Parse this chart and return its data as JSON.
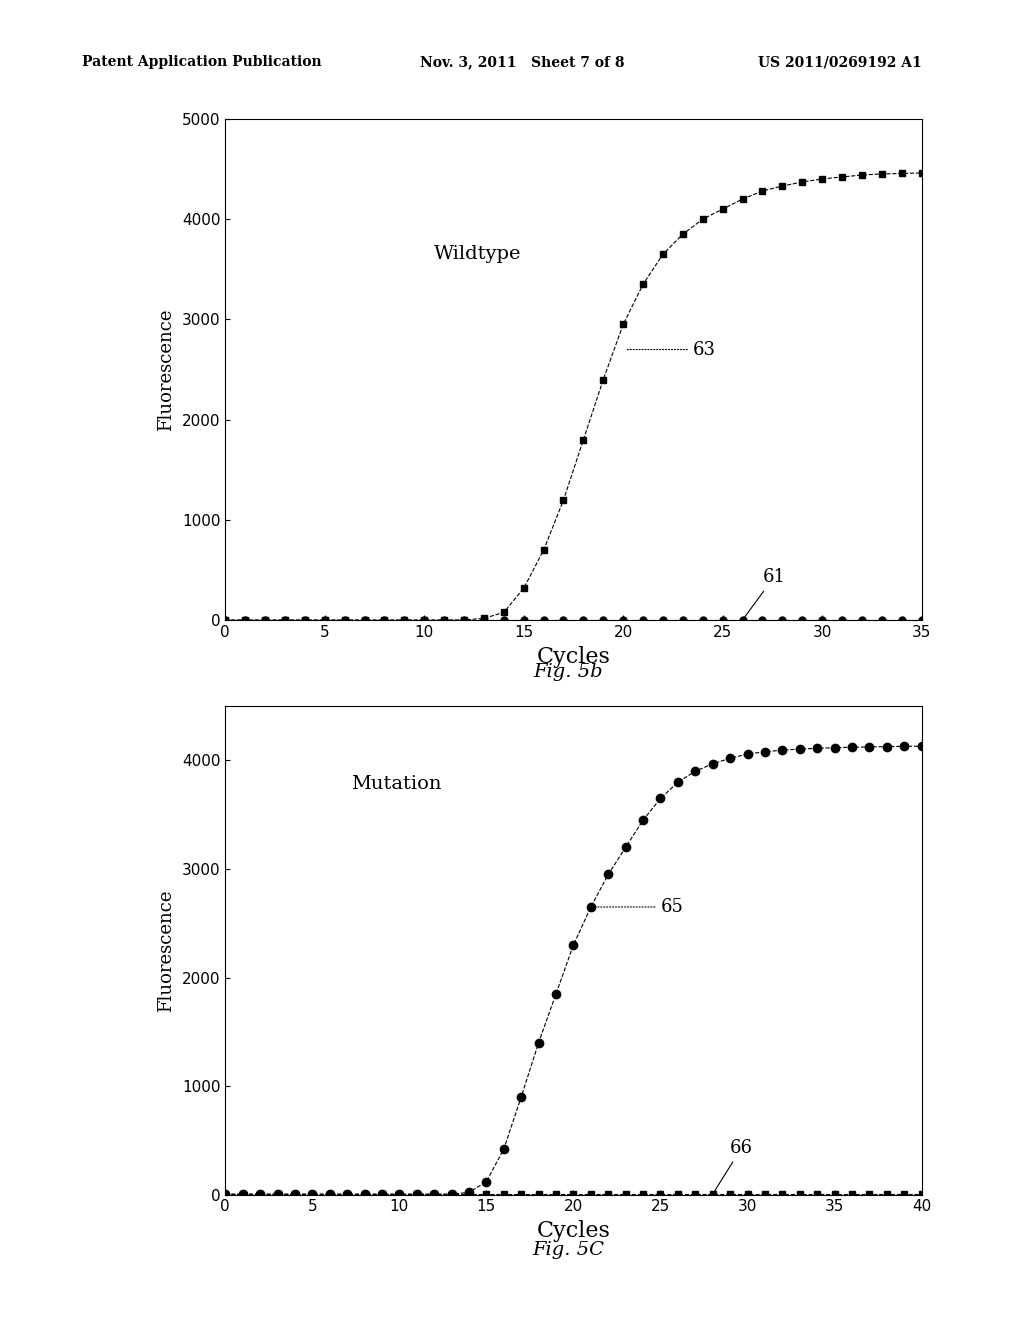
{
  "header_left": "Patent Application Publication",
  "header_mid": "Nov. 3, 2011   Sheet 7 of 8",
  "header_right": "US 2011/0269192 A1",
  "fig1": {
    "title_text": "Wildtype",
    "xlabel": "Cycles",
    "ylabel": "Fluorescence",
    "xlim": [
      0,
      35
    ],
    "ylim": [
      0,
      5000
    ],
    "xticks": [
      0,
      5,
      10,
      15,
      20,
      25,
      30,
      35
    ],
    "yticks": [
      0,
      1000,
      2000,
      3000,
      4000,
      5000
    ],
    "label63": "63",
    "label61": "61",
    "figcaption": "Fig. 5b",
    "curve63_x": [
      0,
      1,
      2,
      3,
      4,
      5,
      6,
      7,
      8,
      9,
      10,
      11,
      12,
      13,
      14,
      15,
      16,
      17,
      18,
      19,
      20,
      21,
      22,
      23,
      24,
      25,
      26,
      27,
      28,
      29,
      30,
      31,
      32,
      33,
      34,
      35
    ],
    "curve63_y": [
      5,
      5,
      5,
      5,
      5,
      5,
      5,
      5,
      5,
      5,
      5,
      5,
      5,
      20,
      80,
      320,
      700,
      1200,
      1800,
      2400,
      2950,
      3350,
      3650,
      3850,
      4000,
      4100,
      4200,
      4280,
      4330,
      4370,
      4400,
      4420,
      4440,
      4450,
      4455,
      4460
    ],
    "curve61_x": [
      0,
      1,
      2,
      3,
      4,
      5,
      6,
      7,
      8,
      9,
      10,
      11,
      12,
      13,
      14,
      15,
      16,
      17,
      18,
      19,
      20,
      21,
      22,
      23,
      24,
      25,
      26,
      27,
      28,
      29,
      30,
      31,
      32,
      33,
      34,
      35
    ],
    "curve61_y": [
      3,
      3,
      3,
      3,
      3,
      3,
      3,
      3,
      3,
      3,
      3,
      3,
      3,
      3,
      3,
      3,
      3,
      3,
      3,
      3,
      3,
      3,
      3,
      3,
      3,
      3,
      3,
      3,
      3,
      3,
      3,
      3,
      3,
      3,
      3,
      3
    ]
  },
  "fig2": {
    "title_text": "Mutation",
    "xlabel": "Cycles",
    "ylabel": "Fluorescence",
    "xlim": [
      0,
      40
    ],
    "ylim": [
      0,
      4500
    ],
    "xticks": [
      0,
      5,
      10,
      15,
      20,
      25,
      30,
      35,
      40
    ],
    "yticks": [
      0,
      1000,
      2000,
      3000,
      4000
    ],
    "label65": "65",
    "label66": "66",
    "figcaption": "Fig. 5C",
    "curve65_x": [
      0,
      1,
      2,
      3,
      4,
      5,
      6,
      7,
      8,
      9,
      10,
      11,
      12,
      13,
      14,
      15,
      16,
      17,
      18,
      19,
      20,
      21,
      22,
      23,
      24,
      25,
      26,
      27,
      28,
      29,
      30,
      31,
      32,
      33,
      34,
      35,
      36,
      37,
      38,
      39,
      40
    ],
    "curve65_y": [
      5,
      5,
      5,
      5,
      5,
      5,
      5,
      5,
      5,
      5,
      5,
      5,
      5,
      5,
      20,
      120,
      420,
      900,
      1400,
      1850,
      2300,
      2650,
      2950,
      3200,
      3450,
      3650,
      3800,
      3900,
      3970,
      4020,
      4060,
      4080,
      4095,
      4105,
      4112,
      4118,
      4122,
      4125,
      4128,
      4130,
      4132
    ],
    "curve66_x": [
      0,
      1,
      2,
      3,
      4,
      5,
      6,
      7,
      8,
      9,
      10,
      11,
      12,
      13,
      14,
      15,
      16,
      17,
      18,
      19,
      20,
      21,
      22,
      23,
      24,
      25,
      26,
      27,
      28,
      29,
      30,
      31,
      32,
      33,
      34,
      35,
      36,
      37,
      38,
      39,
      40
    ],
    "curve66_y": [
      3,
      3,
      3,
      3,
      3,
      3,
      3,
      3,
      3,
      3,
      3,
      3,
      3,
      3,
      3,
      3,
      3,
      3,
      3,
      3,
      3,
      3,
      3,
      3,
      3,
      3,
      3,
      3,
      3,
      3,
      3,
      3,
      3,
      3,
      3,
      3,
      3,
      3,
      3,
      3,
      3
    ]
  },
  "bg_color": "#ffffff",
  "line_color": "#000000",
  "marker_size": 5,
  "font_family": "serif"
}
